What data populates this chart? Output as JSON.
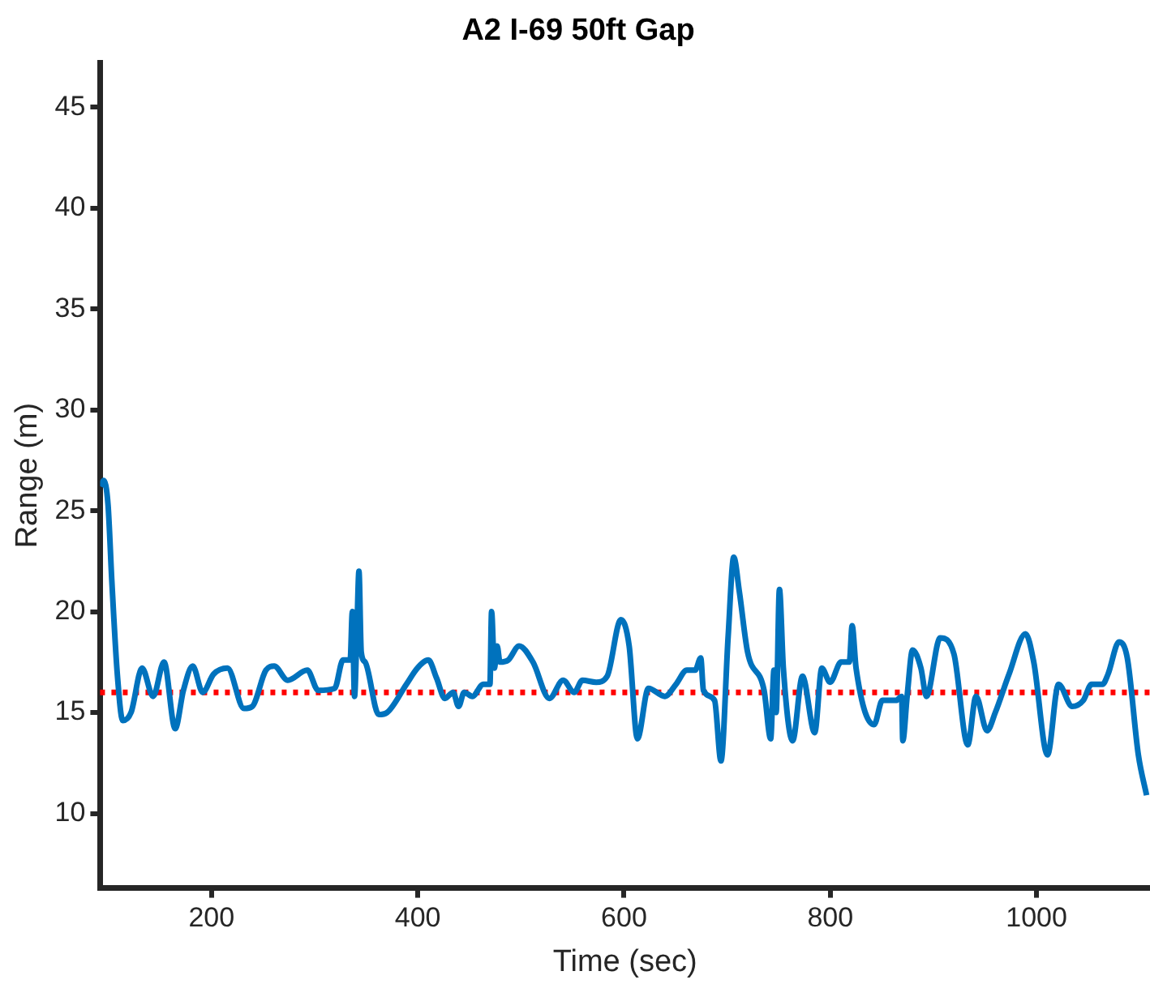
{
  "chart_data": {
    "type": "line",
    "title": "A2 I-69 50ft Gap",
    "xlabel": "Time (sec)",
    "ylabel": "Range (m)",
    "x": [
      92.7,
      95.4,
      99.7,
      103.4,
      108.7,
      114,
      122,
      132.7,
      143.4,
      154,
      164.8,
      172.8,
      181.8,
      191.5,
      202,
      215.5,
      231.5,
      239.5,
      252.8,
      260.8,
      274,
      292.9,
      303.5,
      319.5,
      327.5,
      334.5,
      336.6,
      338.7,
      340.9,
      343,
      345.2,
      349,
      362.2,
      370.2,
      389,
      399.6,
      410.3,
      418.3,
      426.3,
      434.3,
      439.6,
      445,
      453,
      463.6,
      470,
      471.6,
      474.3,
      477,
      479.7,
      487.7,
      498.3,
      511.7,
      527.7,
      541,
      551.7,
      559.7,
      573,
      583.7,
      597,
      605,
      613,
      623.7,
      639.7,
      650.4,
      661,
      669,
      674.4,
      677,
      687.8,
      694,
      701,
      706.4,
      711.8,
      719.8,
      735.8,
      742.2,
      745.4,
      747.5,
      750.7,
      754.5,
      763.5,
      773,
      784.9,
      791.8,
      799.8,
      810.5,
      818.5,
      821.2,
      825,
      842.5,
      850.5,
      863.9,
      869.2,
      870.3,
      874.5,
      879.8,
      887.9,
      893.2,
      906.6,
      919.9,
      933.3,
      941.3,
      952,
      960,
      973.3,
      989.3,
      997.3,
      1010.6,
      1021.3,
      1034.6,
      1045.3,
      1053.3,
      1064,
      1069.3,
      1080,
      1088,
      1098.7,
      1106.7
    ],
    "series": [
      {
        "color": "#0072bd",
        "values": [
          26.2,
          26.5,
          25.3,
          21.5,
          16.9,
          14.6,
          15.0,
          17.2,
          15.8,
          17.5,
          14.2,
          16.1,
          17.3,
          16.0,
          16.9,
          17.2,
          15.2,
          15.3,
          17.1,
          17.3,
          16.6,
          17.1,
          16.1,
          16.2,
          17.6,
          17.6,
          20.0,
          15.8,
          18.8,
          22.0,
          18.0,
          17.5,
          14.9,
          15.0,
          16.4,
          17.2,
          17.6,
          16.7,
          15.7,
          16.0,
          15.3,
          16.0,
          15.8,
          16.4,
          16.4,
          20.0,
          17.2,
          18.3,
          17.5,
          17.6,
          18.3,
          17.5,
          15.7,
          16.6,
          16.0,
          16.6,
          16.5,
          16.8,
          19.6,
          18.3,
          13.7,
          16.2,
          15.8,
          16.4,
          17.1,
          17.1,
          17.7,
          16.1,
          15.6,
          12.6,
          18.8,
          22.7,
          21.0,
          18.0,
          16.1,
          13.7,
          17.1,
          15.0,
          21.1,
          17.2,
          13.6,
          16.8,
          14.0,
          17.2,
          16.5,
          17.5,
          17.5,
          19.3,
          17.2,
          14.4,
          15.6,
          15.6,
          15.8,
          13.6,
          15.8,
          18.1,
          17.2,
          15.8,
          18.7,
          17.9,
          13.4,
          15.8,
          14.1,
          15.0,
          16.9,
          18.9,
          17.5,
          12.9,
          16.4,
          15.3,
          15.6,
          16.4,
          16.4,
          16.9,
          18.5,
          17.7,
          12.9,
          10.9
        ]
      }
    ],
    "xlim": [
      92,
      1110
    ],
    "ylim": [
      6.3,
      47.2
    ],
    "xticks": [
      200,
      400,
      600,
      800,
      1000
    ],
    "yticks": [
      10,
      15,
      20,
      25,
      30,
      35,
      40,
      45
    ],
    "ref_lines": [
      {
        "axis": "y",
        "value": 16,
        "color": "#ff0000",
        "line_style": "dotted"
      }
    ],
    "grid": false,
    "legend": false,
    "marker": "none",
    "line_style": "solid"
  }
}
